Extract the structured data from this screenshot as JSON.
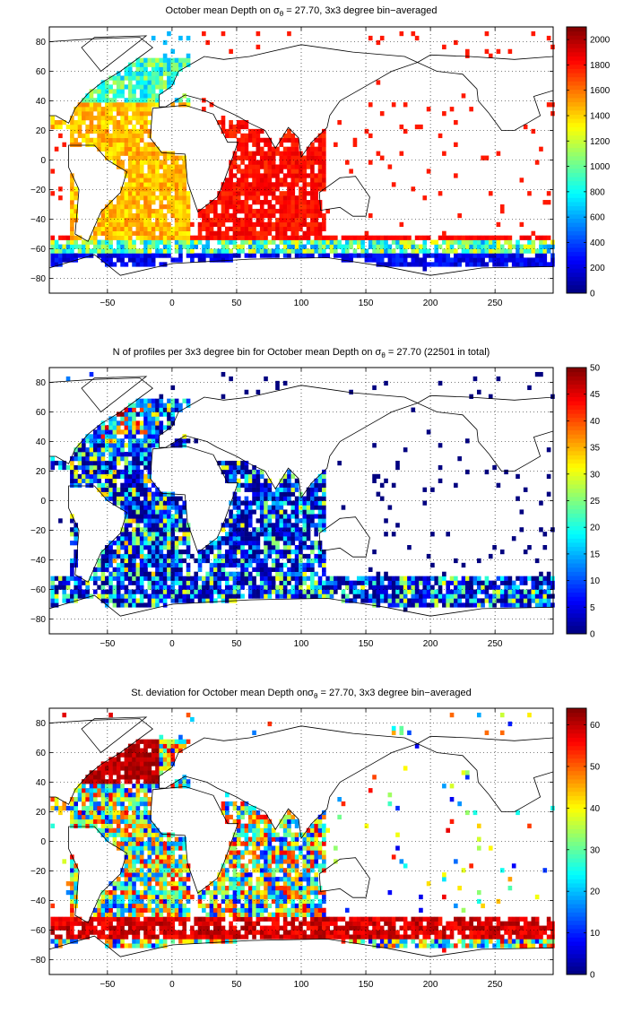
{
  "chart_data": [
    {
      "type": "heatmap",
      "title_parts": [
        "October mean Depth on σ",
        "θ",
        " = 27.70, 3x3 degree bin−averaged"
      ],
      "xticks": [
        "−50",
        "0",
        "50",
        "100",
        "150",
        "200",
        "250"
      ],
      "yticks": [
        "80",
        "60",
        "40",
        "20",
        "0",
        "−20",
        "−40",
        "−60",
        "−80"
      ],
      "colorbar_ticks": [
        "0",
        "200",
        "400",
        "600",
        "800",
        "1000",
        "1200",
        "1400",
        "1600",
        "1800",
        "2000"
      ],
      "xlim": [
        -95,
        295
      ],
      "ylim": [
        -90,
        90
      ],
      "colorbar_range": [
        0,
        2100
      ],
      "colormap": "jet",
      "grid": "dotted",
      "field": "depth"
    },
    {
      "type": "heatmap",
      "title_parts": [
        "N of profiles per 3x3 degree bin for October mean Depth on σ",
        "θ",
        " = 27.70 (22501 in total)"
      ],
      "xticks": [
        "−50",
        "0",
        "50",
        "100",
        "150",
        "200",
        "250"
      ],
      "yticks": [
        "80",
        "60",
        "40",
        "20",
        "0",
        "−20",
        "−40",
        "−60",
        "−80"
      ],
      "colorbar_ticks": [
        "0",
        "5",
        "10",
        "15",
        "20",
        "25",
        "30",
        "35",
        "40",
        "45",
        "50"
      ],
      "xlim": [
        -95,
        295
      ],
      "ylim": [
        -90,
        90
      ],
      "colorbar_range": [
        0,
        50
      ],
      "colormap": "jet",
      "grid": "dotted",
      "field": "count"
    },
    {
      "type": "heatmap",
      "title_parts": [
        "St. deviation for October mean Depth onσ",
        "θ",
        " = 27.70, 3x3 degree bin−averaged"
      ],
      "xticks": [
        "−50",
        "0",
        "50",
        "100",
        "150",
        "200",
        "250"
      ],
      "yticks": [
        "80",
        "60",
        "40",
        "20",
        "0",
        "−20",
        "−40",
        "−60",
        "−80"
      ],
      "colorbar_ticks": [
        "0",
        "10",
        "20",
        "30",
        "40",
        "50",
        "60"
      ],
      "xlim": [
        -95,
        295
      ],
      "ylim": [
        -90,
        90
      ],
      "colorbar_range": [
        0,
        64
      ],
      "colormap": "jet",
      "grid": "dotted",
      "field": "std"
    }
  ]
}
